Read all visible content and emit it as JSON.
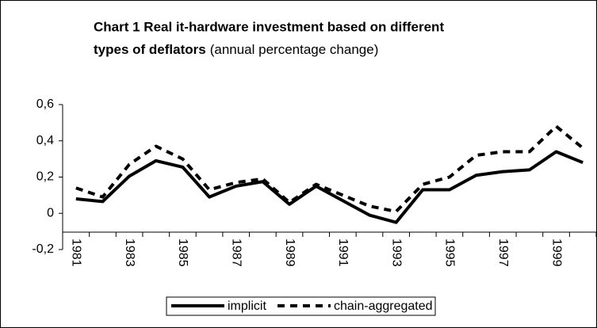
{
  "chart_data": {
    "type": "line",
    "title": "Chart 1 Real it-hardware investment based on different",
    "title_line2": "types of deflators",
    "subtitle": "(annual percentage change)",
    "categories": [
      "1981",
      null,
      "1983",
      null,
      "1985",
      null,
      "1987",
      null,
      "1989",
      null,
      "1991",
      null,
      "1993",
      null,
      "1995",
      null,
      "1997",
      null,
      "1999",
      null
    ],
    "series": [
      {
        "name": "implicit",
        "color": "#000000",
        "dash": "solid",
        "values": [
          0.08,
          0.065,
          0.205,
          0.29,
          0.255,
          0.09,
          0.15,
          0.175,
          0.05,
          0.15,
          0.07,
          -0.01,
          -0.05,
          0.13,
          0.13,
          0.21,
          0.23,
          0.24,
          0.34,
          0.28
        ]
      },
      {
        "name": "chain-aggregated",
        "color": "#000000",
        "dash": "dashed",
        "values": [
          0.14,
          0.09,
          0.27,
          0.37,
          0.3,
          0.13,
          0.17,
          0.19,
          0.06,
          0.16,
          0.1,
          0.04,
          0.01,
          0.16,
          0.2,
          0.32,
          0.34,
          0.34,
          0.48,
          0.36
        ]
      }
    ],
    "ylim": [
      -0.2,
      0.6
    ],
    "yticks": [
      {
        "value": -0.2,
        "label": "-0,2"
      },
      0,
      {
        "value": 0.2,
        "label": "0,2"
      },
      {
        "value": 0.4,
        "label": "0,4"
      },
      {
        "value": 0.6,
        "label": "0,6"
      }
    ],
    "grid": false,
    "legend": "bottom"
  }
}
